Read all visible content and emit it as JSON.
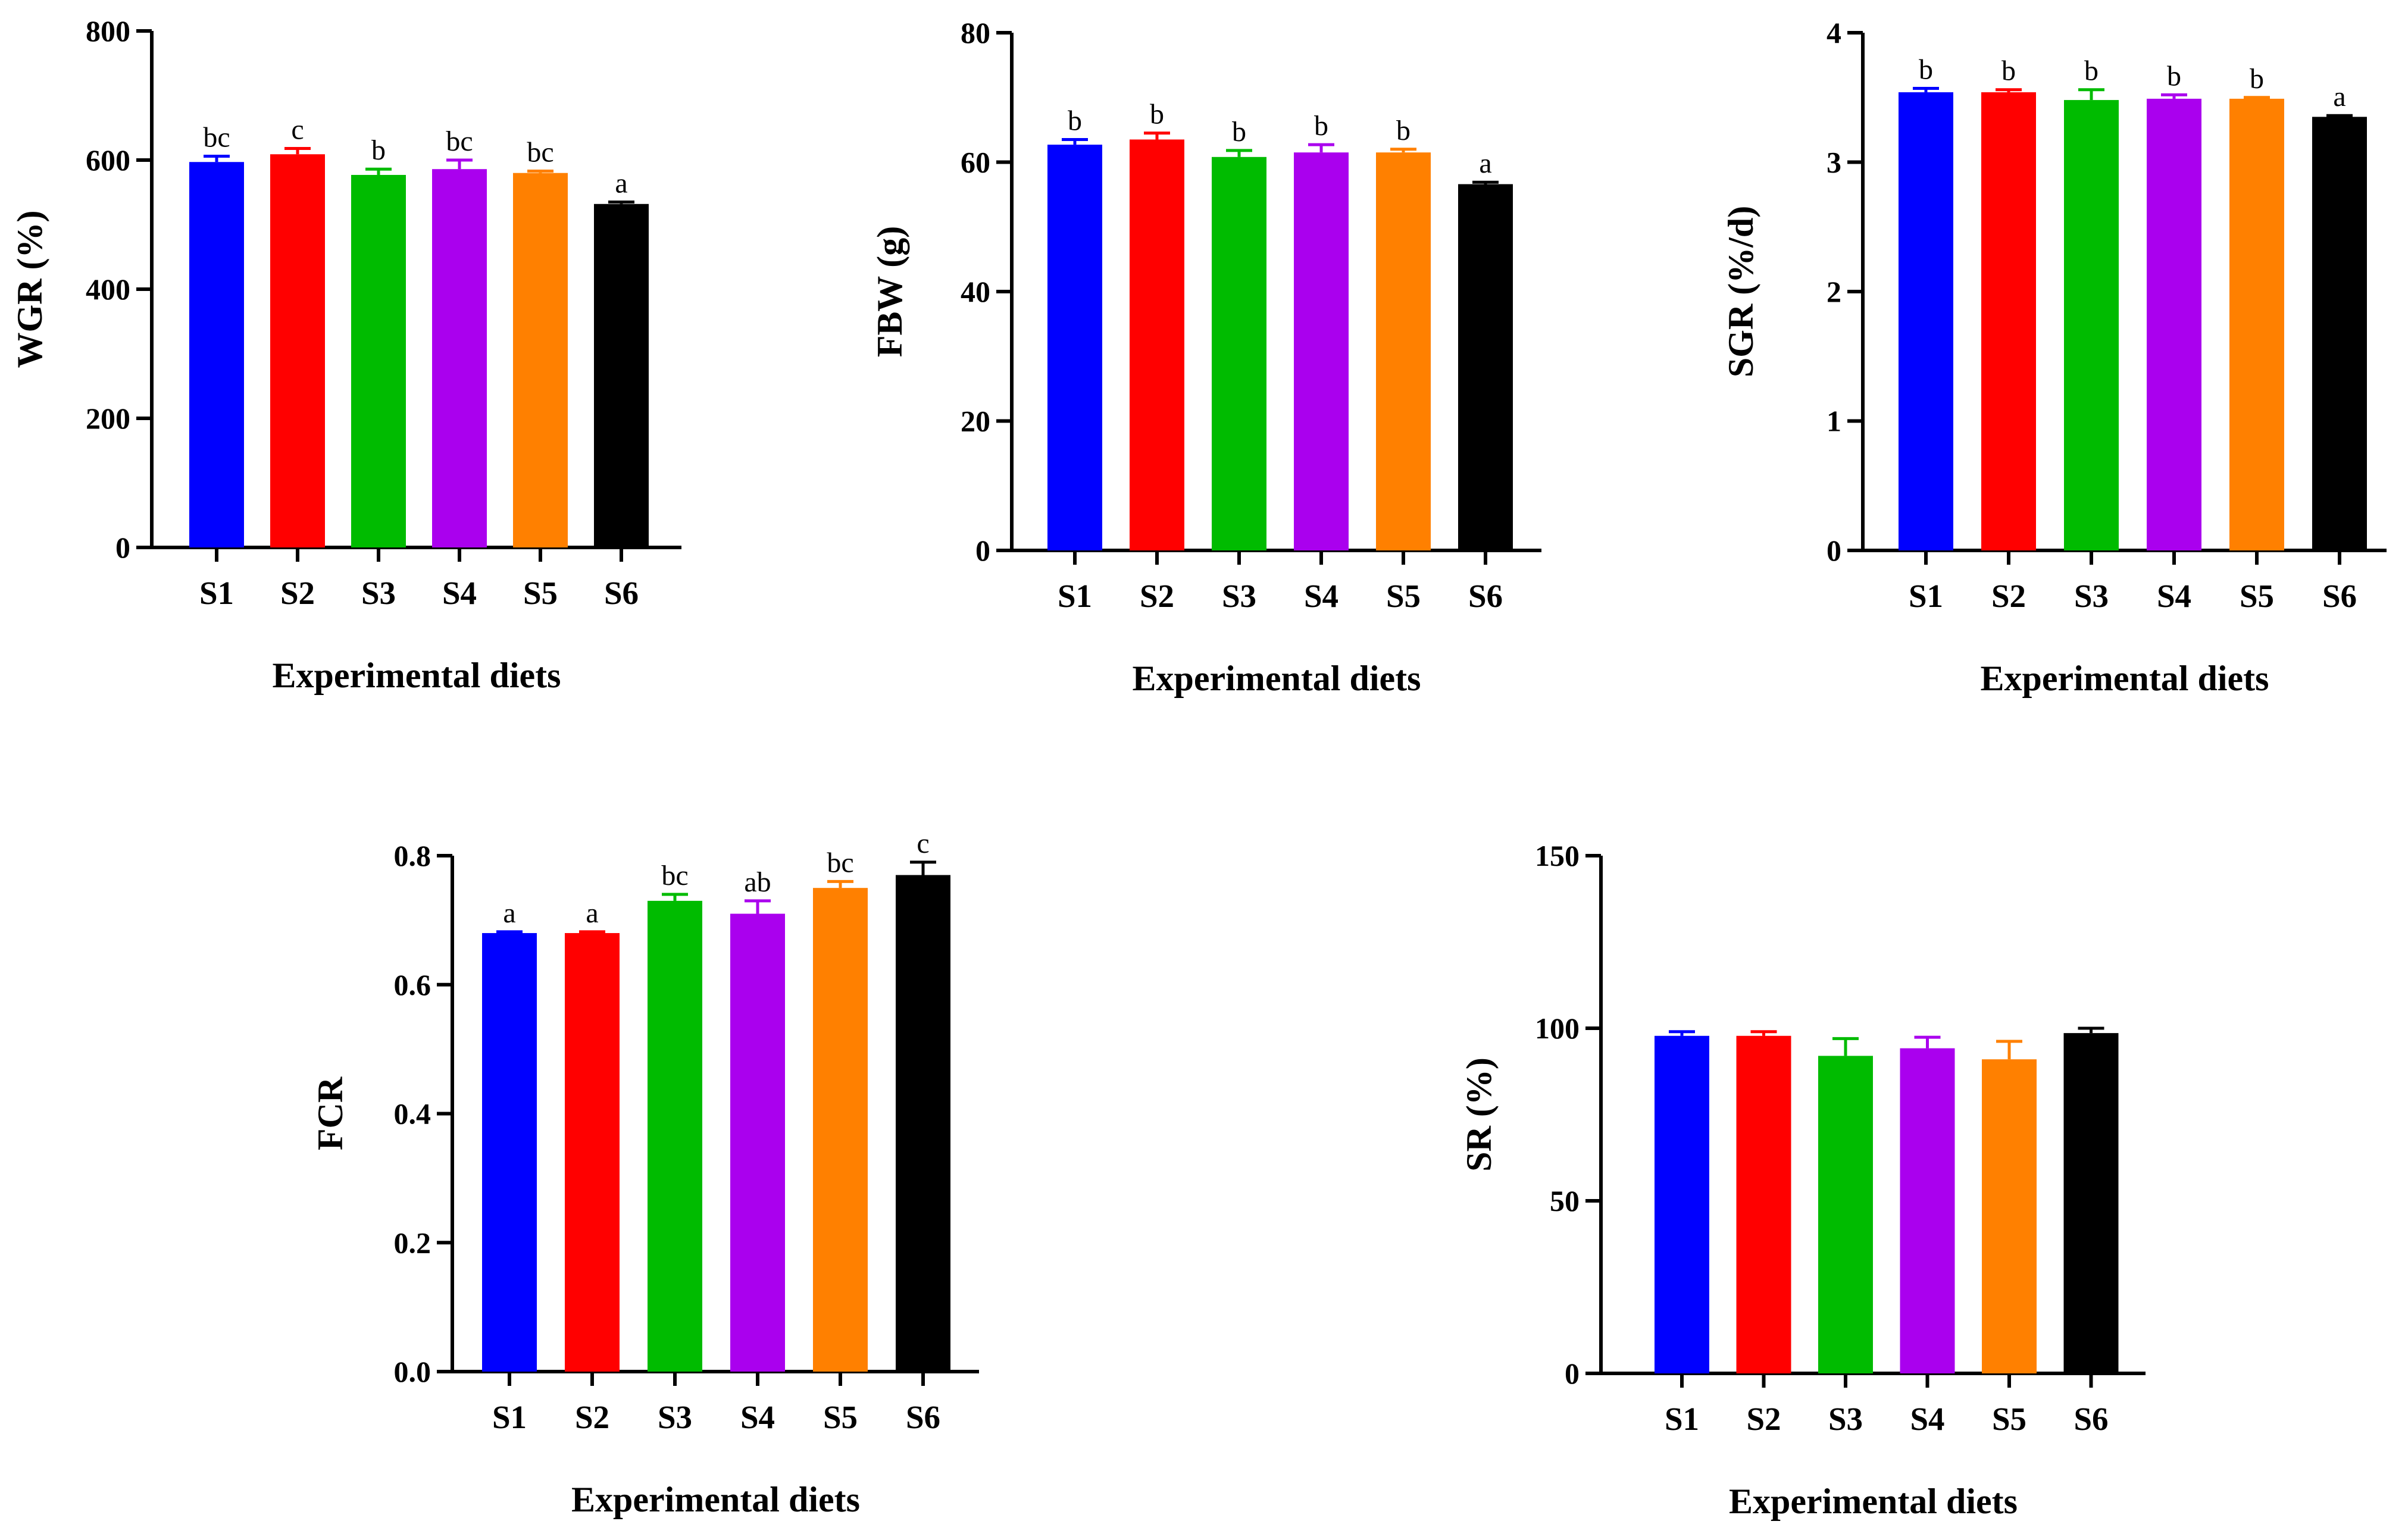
{
  "chart_data": [
    {
      "type": "bar",
      "id": "wgr",
      "ylabel": "WGR (%)",
      "xlabel": "Experimental diets",
      "categories": [
        "S1",
        "S2",
        "S3",
        "S4",
        "S5",
        "S6"
      ],
      "values": [
        597,
        609,
        577,
        586,
        580,
        532
      ],
      "errors": [
        9,
        9,
        9,
        14,
        3,
        3
      ],
      "significance": [
        "bc",
        "c",
        "b",
        "bc",
        "bc",
        "a"
      ],
      "ylim": [
        0,
        800
      ],
      "yticks": [
        0,
        200,
        400,
        600,
        800
      ],
      "ytick_labels": [
        "0",
        "200",
        "400",
        "600",
        "800"
      ],
      "colors": [
        "#0000ff",
        "#ff0000",
        "#00bb00",
        "#aa00ee",
        "#ff8000",
        "#000000"
      ]
    },
    {
      "type": "bar",
      "id": "fbw",
      "ylabel": "FBW (g)",
      "xlabel": "Experimental diets",
      "categories": [
        "S1",
        "S2",
        "S3",
        "S4",
        "S5",
        "S6"
      ],
      "values": [
        62.7,
        63.5,
        60.8,
        61.5,
        61.5,
        56.6
      ],
      "errors": [
        0.8,
        1.0,
        1.0,
        1.2,
        0.5,
        0.3
      ],
      "significance": [
        "b",
        "b",
        "b",
        "b",
        "b",
        "a"
      ],
      "ylim": [
        0,
        80
      ],
      "yticks": [
        0,
        20,
        40,
        60,
        80
      ],
      "ytick_labels": [
        "0",
        "20",
        "40",
        "60",
        "80"
      ],
      "colors": [
        "#0000ff",
        "#ff0000",
        "#00bb00",
        "#aa00ee",
        "#ff8000",
        "#000000"
      ]
    },
    {
      "type": "bar",
      "id": "sgr",
      "ylabel": "SGR (%/d)",
      "xlabel": "Experimental diets",
      "categories": [
        "S1",
        "S2",
        "S3",
        "S4",
        "S5",
        "S6"
      ],
      "values": [
        3.54,
        3.54,
        3.48,
        3.49,
        3.49,
        3.35
      ],
      "errors": [
        0.03,
        0.02,
        0.08,
        0.03,
        0.01,
        0.01
      ],
      "significance": [
        "b",
        "b",
        "b",
        "b",
        "b",
        "a"
      ],
      "ylim": [
        0,
        4
      ],
      "yticks": [
        0,
        1,
        2,
        3,
        4
      ],
      "ytick_labels": [
        "0",
        "1",
        "2",
        "3",
        "4"
      ],
      "colors": [
        "#0000ff",
        "#ff0000",
        "#00bb00",
        "#aa00ee",
        "#ff8000",
        "#000000"
      ]
    },
    {
      "type": "bar",
      "id": "fcr",
      "ylabel": "FCR",
      "xlabel": "Experimental diets",
      "categories": [
        "S1",
        "S2",
        "S3",
        "S4",
        "S5",
        "S6"
      ],
      "values": [
        0.68,
        0.68,
        0.73,
        0.71,
        0.75,
        0.77
      ],
      "errors": [
        0.002,
        0.002,
        0.01,
        0.02,
        0.01,
        0.02
      ],
      "significance": [
        "a",
        "a",
        "bc",
        "ab",
        "bc",
        "c"
      ],
      "ylim": [
        0,
        0.8
      ],
      "yticks": [
        0,
        0.2,
        0.4,
        0.6,
        0.8
      ],
      "ytick_labels": [
        "0.0",
        "0.2",
        "0.4",
        "0.6",
        "0.8"
      ],
      "colors": [
        "#0000ff",
        "#ff0000",
        "#00bb00",
        "#aa00ee",
        "#ff8000",
        "#000000"
      ]
    },
    {
      "type": "bar",
      "id": "sr",
      "ylabel": "SR (%)",
      "xlabel": "Experimental diets",
      "categories": [
        "S1",
        "S2",
        "S3",
        "S4",
        "S5",
        "S6"
      ],
      "values": [
        97.8,
        97.8,
        92.0,
        94.2,
        91.0,
        98.6
      ],
      "errors": [
        1.2,
        1.2,
        5.0,
        3.2,
        5.2,
        1.4
      ],
      "significance": [
        "",
        "",
        "",
        "",
        "",
        ""
      ],
      "ylim": [
        0,
        150
      ],
      "yticks": [
        0,
        50,
        100,
        150
      ],
      "ytick_labels": [
        "0",
        "50",
        "100",
        "150"
      ],
      "colors": [
        "#0000ff",
        "#ff0000",
        "#00bb00",
        "#aa00ee",
        "#ff8000",
        "#000000"
      ]
    }
  ]
}
